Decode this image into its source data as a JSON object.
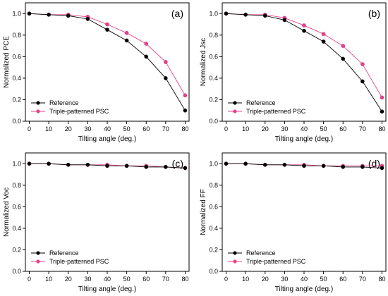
{
  "colors": {
    "reference": "#000000",
    "triple": "#e8418c",
    "axis": "#000000"
  },
  "chart_data": [
    {
      "type": "line",
      "panel_label": "(a)",
      "xlabel": "Tilting angle (deg.)",
      "ylabel": "Normalized PCE",
      "xlim": [
        -2,
        82
      ],
      "ylim": [
        0.0,
        1.1
      ],
      "xticks": [
        "0",
        "10",
        "20",
        "30",
        "40",
        "50",
        "60",
        "70",
        "80"
      ],
      "yticks": [
        "0.0",
        "0.2",
        "0.4",
        "0.6",
        "0.8",
        "1.0"
      ],
      "x": [
        0,
        10,
        20,
        30,
        40,
        50,
        60,
        70,
        80
      ],
      "legend_position": "lower-left",
      "series": [
        {
          "name": "Reference",
          "values": [
            1.0,
            0.99,
            0.98,
            0.95,
            0.85,
            0.75,
            0.6,
            0.4,
            0.1
          ]
        },
        {
          "name": "Triple-patterned PSC",
          "values": [
            1.0,
            0.99,
            0.99,
            0.97,
            0.9,
            0.82,
            0.72,
            0.55,
            0.24
          ]
        }
      ]
    },
    {
      "type": "line",
      "panel_label": "(b)",
      "xlabel": "Tilting angle (deg.)",
      "ylabel": "Normalized Jsc",
      "xlim": [
        -2,
        82
      ],
      "ylim": [
        0.0,
        1.1
      ],
      "xticks": [
        "0",
        "10",
        "20",
        "30",
        "40",
        "50",
        "60",
        "70",
        "80"
      ],
      "yticks": [
        "0.0",
        "0.2",
        "0.4",
        "0.6",
        "0.8",
        "1.0"
      ],
      "x": [
        0,
        10,
        20,
        30,
        40,
        50,
        60,
        70,
        80
      ],
      "legend_position": "lower-left",
      "series": [
        {
          "name": "Reference",
          "values": [
            1.0,
            0.99,
            0.98,
            0.94,
            0.84,
            0.74,
            0.58,
            0.37,
            0.09
          ]
        },
        {
          "name": "Triple-patterned PSC",
          "values": [
            1.0,
            0.99,
            0.99,
            0.96,
            0.89,
            0.81,
            0.7,
            0.53,
            0.22
          ]
        }
      ]
    },
    {
      "type": "line",
      "panel_label": "(c)",
      "xlabel": "Tilting angle (deg.)",
      "ylabel": "Normalized Voc",
      "xlim": [
        -2,
        82
      ],
      "ylim": [
        0.0,
        1.1
      ],
      "xticks": [
        "0",
        "10",
        "20",
        "30",
        "40",
        "50",
        "60",
        "70",
        "80"
      ],
      "yticks": [
        "0.0",
        "0.2",
        "0.4",
        "0.6",
        "0.8",
        "1.0"
      ],
      "x": [
        0,
        10,
        20,
        30,
        40,
        50,
        60,
        70,
        80
      ],
      "legend_position": "lower-left",
      "series": [
        {
          "name": "Reference",
          "values": [
            1.0,
            1.0,
            0.99,
            0.99,
            0.98,
            0.98,
            0.97,
            0.97,
            0.96
          ]
        },
        {
          "name": "Triple-patterned PSC",
          "values": [
            1.0,
            1.0,
            0.99,
            0.99,
            0.99,
            0.98,
            0.98,
            0.97,
            0.96
          ]
        }
      ]
    },
    {
      "type": "line",
      "panel_label": "(d)",
      "xlabel": "Tilting angle (deg.)",
      "ylabel": "Normalized FF",
      "xlim": [
        -2,
        82
      ],
      "ylim": [
        0.0,
        1.1
      ],
      "xticks": [
        "0",
        "10",
        "20",
        "30",
        "40",
        "50",
        "60",
        "70",
        "80"
      ],
      "yticks": [
        "0.0",
        "0.2",
        "0.4",
        "0.6",
        "0.8",
        "1.0"
      ],
      "x": [
        0,
        10,
        20,
        30,
        40,
        50,
        60,
        70,
        80
      ],
      "legend_position": "lower-left",
      "series": [
        {
          "name": "Reference",
          "values": [
            1.0,
            1.0,
            0.99,
            0.99,
            0.98,
            0.98,
            0.97,
            0.97,
            0.96
          ]
        },
        {
          "name": "Triple-patterned PSC",
          "values": [
            1.0,
            1.0,
            0.99,
            0.99,
            0.99,
            0.98,
            0.98,
            0.98,
            0.98
          ]
        }
      ]
    }
  ]
}
